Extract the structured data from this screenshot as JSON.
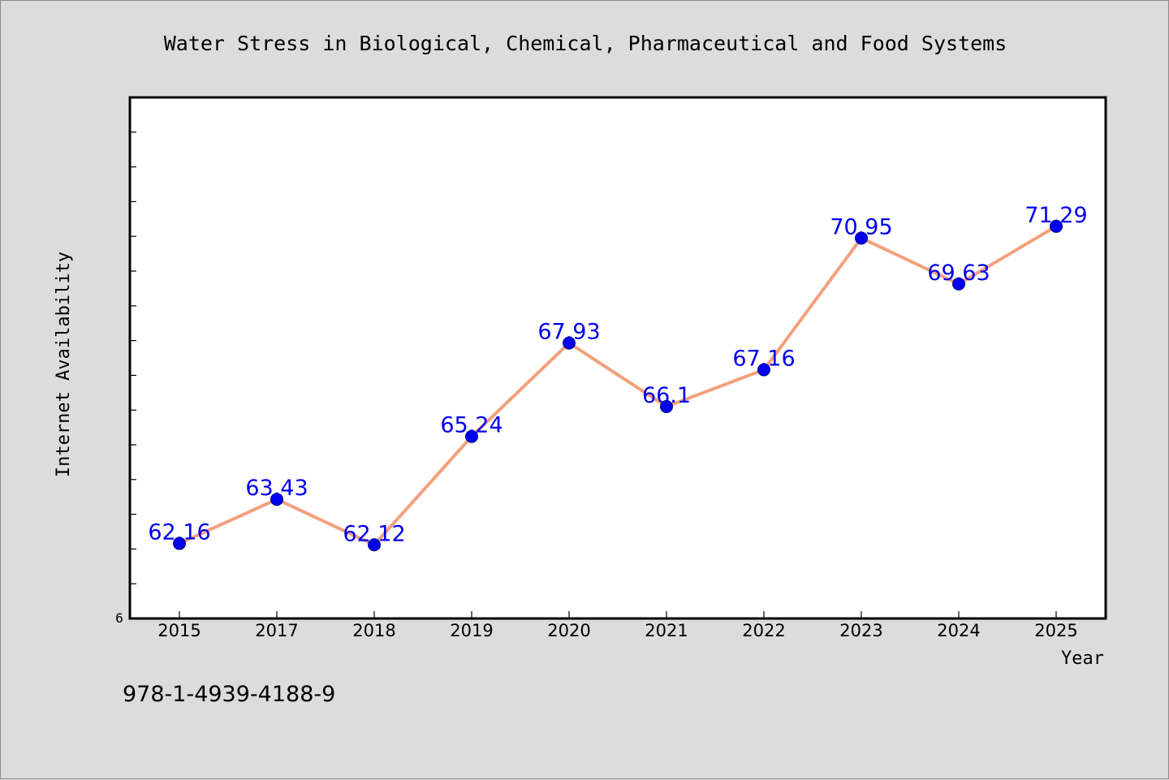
{
  "chart_data": {
    "type": "line",
    "title": "Water Stress in Biological, Chemical, Pharmaceutical and Food Systems",
    "xlabel": "Year",
    "ylabel": "Internet Availability",
    "categories": [
      "2015",
      "2017",
      "2018",
      "2019",
      "2020",
      "2021",
      "2022",
      "2023",
      "2024",
      "2025"
    ],
    "series": [
      {
        "values": [
          62.16,
          63.43,
          62.12,
          65.24,
          67.93,
          66.1,
          67.16,
          70.95,
          69.63,
          71.29
        ],
        "data_labels": [
          "62.16",
          "63.43",
          "62.12",
          "65.24",
          "67.93",
          "66.1",
          "67.16",
          "70.95",
          "69.63",
          "71.29"
        ],
        "line_color": "#f4a07c",
        "marker_color": "#0000ee",
        "label_color": "#0000ee"
      }
    ],
    "y_min_label": "6",
    "ylim": [
      60,
      75
    ],
    "grid": false,
    "legend": false
  },
  "footer_text": "978-1-4939-4188-9",
  "colors": {
    "background": "#dcdcdc",
    "plot_background": "#ffffff",
    "axis": "#000000"
  }
}
